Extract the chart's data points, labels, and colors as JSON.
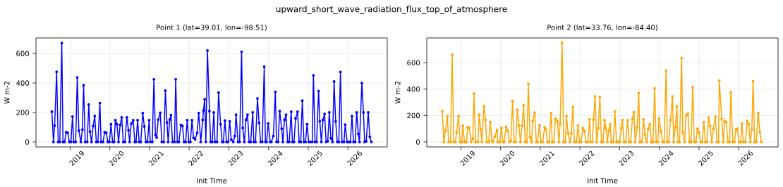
{
  "chart_data": [
    {
      "type": "line",
      "title": "Point 1 (lat=39.01, lon=-98.51)",
      "xlabel": "Init Time",
      "ylabel": "W m-2",
      "annotations": [
        "upward_short_wave_radiation_flux_top_of_atmosphere"
      ],
      "xlim": [
        2018.14,
        2026.99
      ],
      "xticks": [
        2019,
        2020,
        2021,
        2022,
        2023,
        2024,
        2025,
        2026
      ],
      "ylim": [
        -33.6,
        705.6
      ],
      "yticks": [
        0,
        200,
        400,
        600
      ],
      "grid": true,
      "marker": "circle",
      "line_style": "solid",
      "series": [
        {
          "color": "#0000ff",
          "x": [
            2018.54,
            2018.58,
            2018.61,
            2018.66,
            2018.7,
            2018.74,
            2018.79,
            2018.82,
            2018.86,
            2018.9,
            2018.94,
            2018.98,
            2019.02,
            2019.06,
            2019.09,
            2019.14,
            2019.18,
            2019.22,
            2019.27,
            2019.31,
            2019.34,
            2019.38,
            2019.43,
            2019.47,
            2019.5,
            2019.54,
            2019.58,
            2019.62,
            2019.66,
            2019.7,
            2019.75,
            2019.78,
            2019.83,
            2019.87,
            2019.91,
            2019.95,
            2019.99,
            2020.03,
            2020.07,
            2020.11,
            2020.14,
            2020.18,
            2020.22,
            2020.26,
            2020.3,
            2020.34,
            2020.38,
            2020.43,
            2020.47,
            2020.5,
            2020.54,
            2020.59,
            2020.63,
            2020.66,
            2020.7,
            2020.74,
            2020.78,
            2020.83,
            2020.87,
            2020.91,
            2020.95,
            2020.99,
            2021.02,
            2021.07,
            2021.11,
            2021.15,
            2021.18,
            2021.22,
            2021.27,
            2021.31,
            2021.36,
            2021.4,
            2021.44,
            2021.47,
            2021.51,
            2021.54,
            2021.58,
            2021.63,
            2021.66,
            2021.7,
            2021.74,
            2021.79,
            2021.83,
            2021.87,
            2021.91,
            2021.95,
            2021.99,
            2022.03,
            2022.07,
            2022.11,
            2022.15,
            2022.2,
            2022.24,
            2022.29,
            2022.34,
            2022.36,
            2022.39,
            2022.42,
            2022.46,
            2022.51,
            2022.54,
            2022.58,
            2022.62,
            2022.65,
            2022.7,
            2022.74,
            2022.79,
            2022.83,
            2022.86,
            2022.9,
            2022.94,
            2022.98,
            2023.02,
            2023.06,
            2023.11,
            2023.15,
            2023.18,
            2023.23,
            2023.27,
            2023.32,
            2023.35,
            2023.39,
            2023.43,
            2023.47,
            2023.51,
            2023.55,
            2023.6,
            2023.63,
            2023.67,
            2023.72,
            2023.76,
            2023.8,
            2023.84,
            2023.89,
            2023.92,
            2023.95,
            2023.99,
            2024.04,
            2024.07,
            2024.12,
            2024.17,
            2024.2,
            2024.24,
            2024.28,
            2024.33,
            2024.36,
            2024.4,
            2024.44,
            2024.48,
            2024.52,
            2024.57,
            2024.6,
            2024.64,
            2024.68,
            2024.73,
            2024.77,
            2024.81,
            2024.85,
            2024.89,
            2024.93,
            2024.97,
            2025.01,
            2025.05,
            2025.1,
            2025.13,
            2025.17,
            2025.21,
            2025.26,
            2025.29,
            2025.33,
            2025.37,
            2025.41,
            2025.45,
            2025.49,
            2025.53,
            2025.57,
            2025.61,
            2025.65,
            2025.69,
            2025.73,
            2025.77,
            2025.81,
            2025.85,
            2025.9,
            2025.93,
            2025.98,
            2026.02,
            2026.06,
            2026.1,
            2026.14,
            2026.18,
            2026.22,
            2026.26,
            2026.29,
            2026.35,
            2026.39,
            2026.42,
            2026.46,
            2026.51,
            2026.55,
            2026.59
          ],
          "values": [
            206,
            0,
            111,
            476,
            0,
            0,
            671,
            0,
            0,
            67,
            62,
            0,
            0,
            172,
            0,
            0,
            438,
            76,
            0,
            84,
            385,
            0,
            0,
            254,
            70,
            0,
            108,
            176,
            0,
            0,
            264,
            0,
            0,
            67,
            62,
            0,
            0,
            120,
            0,
            0,
            148,
            120,
            0,
            116,
            167,
            0,
            0,
            167,
            79,
            0,
            124,
            148,
            0,
            0,
            148,
            0,
            0,
            196,
            105,
            0,
            0,
            148,
            0,
            0,
            425,
            48,
            30,
            152,
            198,
            0,
            0,
            348,
            132,
            0,
            152,
            183,
            0,
            0,
            425,
            0,
            0,
            116,
            108,
            0,
            0,
            148,
            0,
            0,
            148,
            28,
            18,
            62,
            196,
            0,
            150,
            214,
            290,
            0,
            620,
            210,
            0,
            0,
            200,
            0,
            0,
            335,
            120,
            0,
            0,
            145,
            0,
            0,
            140,
            15,
            0,
            40,
            185,
            0,
            0,
            612,
            95,
            0,
            150,
            185,
            0,
            0,
            200,
            0,
            0,
            295,
            130,
            0,
            0,
            510,
            0,
            0,
            125,
            0,
            0,
            40,
            340,
            0,
            0,
            210,
            90,
            0,
            150,
            185,
            0,
            0,
            205,
            0,
            0,
            160,
            205,
            0,
            0,
            280,
            0,
            0,
            120,
            0,
            0,
            0,
            452,
            0,
            0,
            345,
            140,
            0,
            150,
            190,
            0,
            5,
            200,
            25,
            0,
            410,
            140,
            0,
            0,
            475,
            0,
            0,
            118,
            0,
            0,
            0,
            175,
            0,
            0,
            200,
            55,
            0,
            400,
            200,
            0,
            5,
            200,
            35,
            0
          ]
        }
      ]
    },
    {
      "type": "line",
      "title": "Point 2 (lat=33.76, lon=-84.40)",
      "xlabel": "Init Time",
      "ylabel": "W m-2",
      "xlim": [
        2018.14,
        2026.99
      ],
      "xticks": [
        2019,
        2020,
        2021,
        2022,
        2023,
        2024,
        2025,
        2026
      ],
      "ylim": [
        -37.5,
        787.5
      ],
      "yticks": [
        0,
        200,
        400,
        600
      ],
      "grid": true,
      "marker": "circle",
      "line_style": "solid",
      "series": [
        {
          "color": "#ffa500",
          "x": [
            2018.53,
            2018.57,
            2018.61,
            2018.66,
            2018.69,
            2018.74,
            2018.78,
            2018.82,
            2018.86,
            2018.89,
            2018.94,
            2018.98,
            2019.02,
            2019.05,
            2019.09,
            2019.14,
            2019.17,
            2019.21,
            2019.26,
            2019.3,
            2019.33,
            2019.37,
            2019.43,
            2019.46,
            2019.5,
            2019.53,
            2019.58,
            2019.62,
            2019.65,
            2019.7,
            2019.74,
            2019.78,
            2019.81,
            2019.85,
            2019.91,
            2019.93,
            2019.98,
            2020.02,
            2020.06,
            2020.09,
            2020.14,
            2020.18,
            2020.22,
            2020.26,
            2020.3,
            2020.34,
            2020.38,
            2020.42,
            2020.46,
            2020.5,
            2020.54,
            2020.58,
            2020.62,
            2020.66,
            2020.7,
            2020.74,
            2020.78,
            2020.81,
            2020.86,
            2020.9,
            2020.93,
            2020.98,
            2021.02,
            2021.06,
            2021.11,
            2021.14,
            2021.18,
            2021.22,
            2021.27,
            2021.3,
            2021.34,
            2021.38,
            2021.43,
            2021.47,
            2021.5,
            2021.55,
            2021.59,
            2021.63,
            2021.66,
            2021.7,
            2021.75,
            2021.78,
            2021.82,
            2021.86,
            2021.91,
            2021.95,
            2021.99,
            2022.03,
            2022.07,
            2022.11,
            2022.15,
            2022.2,
            2022.24,
            2022.27,
            2022.31,
            2022.34,
            2022.38,
            2022.42,
            2022.46,
            2022.5,
            2022.54,
            2022.58,
            2022.62,
            2022.65,
            2022.69,
            2022.72,
            2022.76,
            2022.79,
            2022.84,
            2022.88,
            2022.92,
            2022.96,
            2023.0,
            2023.04,
            2023.07,
            2023.11,
            2023.15,
            2023.2,
            2023.24,
            2023.28,
            2023.32,
            2023.36,
            2023.39,
            2023.44,
            2023.48,
            2023.51,
            2023.56,
            2023.6,
            2023.64,
            2023.68,
            2023.72,
            2023.76,
            2023.8,
            2023.84,
            2023.88,
            2023.92,
            2023.96,
            2023.99,
            2024.04,
            2024.08,
            2024.12,
            2024.17,
            2024.2,
            2024.24,
            2024.28,
            2024.33,
            2024.36,
            2024.4,
            2024.44,
            2024.47,
            2024.51,
            2024.56,
            2024.59,
            2024.64,
            2024.67,
            2024.72,
            2024.76,
            2024.8,
            2024.84,
            2024.88,
            2024.92,
            2024.96,
            2025.0,
            2025.04,
            2025.08,
            2025.12,
            2025.16,
            2025.2,
            2025.24,
            2025.28,
            2025.32,
            2025.36,
            2025.41,
            2025.45,
            2025.49,
            2025.51,
            2025.57,
            2025.61,
            2025.64,
            2025.68,
            2025.73,
            2025.77,
            2025.8,
            2025.85,
            2025.89,
            2025.93,
            2025.96,
            2026.01,
            2026.05,
            2026.08,
            2026.12,
            2026.17,
            2026.21,
            2026.25,
            2026.29,
            2026.33,
            2026.36,
            2026.4,
            2026.44,
            2026.49,
            2026.53,
            2026.57
          ],
          "values": [
            233,
            0,
            85,
            195,
            0,
            0,
            660,
            0,
            0,
            73,
            195,
            0,
            0,
            122,
            0,
            0,
            112,
            106,
            0,
            25,
            367,
            0,
            0,
            206,
            95,
            0,
            270,
            168,
            0,
            0,
            152,
            10,
            0,
            40,
            90,
            0,
            0,
            105,
            0,
            0,
            115,
            85,
            0,
            10,
            310,
            0,
            0,
            242,
            125,
            0,
            122,
            277,
            0,
            0,
            440,
            35,
            0,
            160,
            222,
            0,
            0,
            127,
            0,
            0,
            110,
            95,
            0,
            0,
            218,
            0,
            0,
            175,
            160,
            0,
            138,
            750,
            0,
            0,
            195,
            65,
            0,
            65,
            265,
            0,
            0,
            127,
            0,
            0,
            105,
            85,
            0,
            0,
            170,
            0,
            0,
            170,
            345,
            0,
            105,
            340,
            0,
            0,
            165,
            105,
            0,
            85,
            135,
            0,
            0,
            230,
            0,
            0,
            0,
            105,
            165,
            0,
            0,
            165,
            0,
            0,
            175,
            225,
            0,
            110,
            370,
            0,
            0,
            170,
            55,
            0,
            100,
            135,
            0,
            0,
            405,
            0,
            0,
            180,
            80,
            0,
            0,
            540,
            0,
            0,
            165,
            345,
            0,
            110,
            270,
            0,
            0,
            635,
            70,
            0,
            200,
            215,
            0,
            0,
            415,
            0,
            0,
            100,
            70,
            0,
            0,
            150,
            0,
            0,
            185,
            120,
            0,
            100,
            190,
            0,
            0,
            465,
            175,
            0,
            160,
            150,
            0,
            0,
            375,
            0,
            0,
            95,
            100,
            0,
            0,
            140,
            0,
            0,
            160,
            135,
            0,
            95,
            460,
            0,
            0,
            220,
            75,
            0
          ]
        }
      ]
    }
  ]
}
